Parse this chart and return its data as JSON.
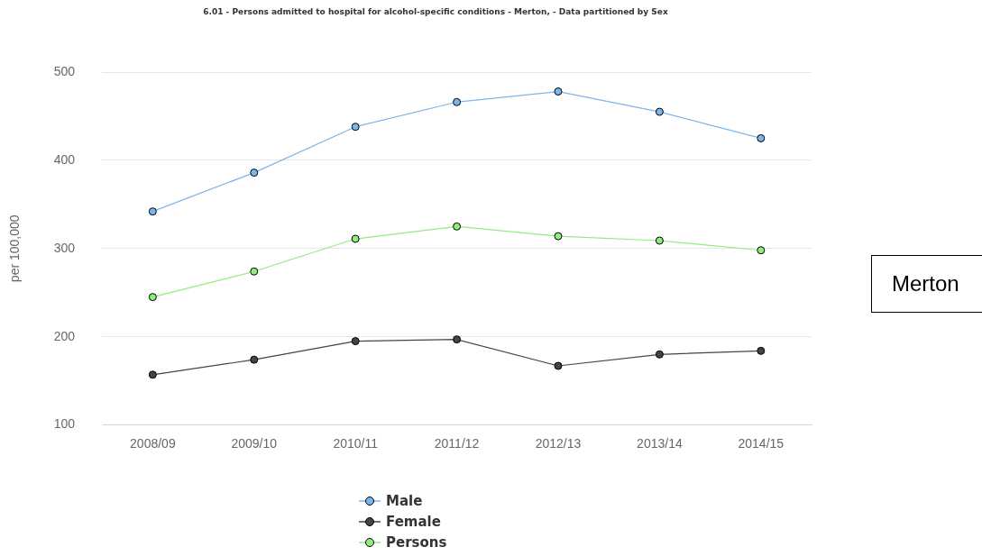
{
  "chart_data": {
    "type": "line",
    "title": "6.01 - Persons admitted to hospital for alcohol-specific conditions - Merton, - Data partitioned by Sex",
    "ylabel": "per 100,000",
    "annotations": [
      "Merton"
    ],
    "categories": [
      "2008/09",
      "2009/10",
      "2010/11",
      "2011/12",
      "2012/13",
      "2013/14",
      "2014/15"
    ],
    "series": [
      {
        "name": "Male",
        "color": "#7cb5ec",
        "values": [
          342,
          386,
          438,
          466,
          478,
          455,
          425
        ]
      },
      {
        "name": "Female",
        "color": "#434348",
        "values": [
          157,
          174,
          195,
          197,
          167,
          180,
          184
        ]
      },
      {
        "name": "Persons",
        "color": "#90ed7d",
        "values": [
          245,
          274,
          311,
          325,
          314,
          309,
          298
        ]
      }
    ],
    "ylim": [
      100,
      500
    ],
    "yticks": [
      100,
      200,
      300,
      400,
      500
    ],
    "grid": "y",
    "legend": "bottom",
    "marker": "circle",
    "line_style": "solid"
  }
}
